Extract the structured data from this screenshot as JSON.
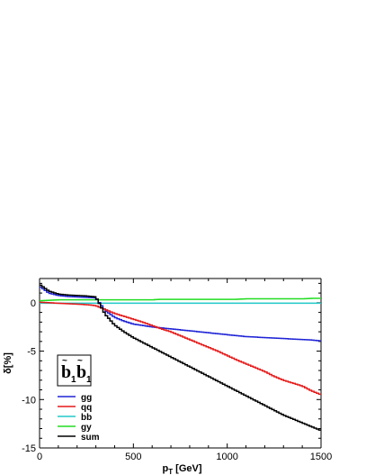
{
  "chart_data": {
    "type": "line",
    "xlabel": "p",
    "xlabel_sub": "T",
    "xlabel_unit": " [GeV]",
    "ylabel": "δ[%]",
    "xlim": [
      0,
      1500
    ],
    "ylim": [
      -15,
      2.5
    ],
    "xticks": [
      0,
      500,
      1000,
      1500
    ],
    "yticks": [
      0,
      -5,
      -10,
      -15
    ],
    "grid": false,
    "legend_position": "bottom-left",
    "annotation": {
      "text": "b",
      "sub": "1",
      "tilde": "~"
    },
    "x": [
      0,
      50,
      100,
      150,
      200,
      250,
      300,
      350,
      400,
      450,
      500,
      550,
      600,
      650,
      700,
      750,
      800,
      850,
      900,
      950,
      1000,
      1050,
      1100,
      1150,
      1200,
      1250,
      1300,
      1350,
      1400,
      1450,
      1500
    ],
    "series": [
      {
        "name": "gg",
        "color": "#1f24d6",
        "values": [
          1.7,
          1.0,
          0.75,
          0.65,
          0.6,
          0.55,
          0.5,
          -0.8,
          -1.5,
          -1.9,
          -2.2,
          -2.35,
          -2.5,
          -2.6,
          -2.7,
          -2.8,
          -2.9,
          -3.0,
          -3.1,
          -3.2,
          -3.3,
          -3.4,
          -3.5,
          -3.55,
          -3.6,
          -3.65,
          -3.7,
          -3.75,
          -3.8,
          -3.85,
          -3.95
        ]
      },
      {
        "name": "qq",
        "color": "#e61919",
        "values": [
          0.05,
          0.0,
          -0.05,
          -0.1,
          -0.15,
          -0.2,
          -0.3,
          -0.7,
          -1.1,
          -1.4,
          -1.7,
          -2.0,
          -2.35,
          -2.7,
          -3.0,
          -3.4,
          -3.8,
          -4.2,
          -4.6,
          -5.0,
          -5.45,
          -5.9,
          -6.3,
          -6.7,
          -7.1,
          -7.6,
          -8.0,
          -8.3,
          -8.6,
          -9.1,
          -9.5
        ]
      },
      {
        "name": "bb",
        "color": "#20c8c8",
        "values": [
          -0.05,
          -0.05,
          -0.05,
          -0.05,
          -0.05,
          -0.05,
          -0.05,
          -0.05,
          -0.05,
          -0.05,
          -0.05,
          -0.05,
          -0.05,
          -0.05,
          -0.05,
          -0.05,
          -0.05,
          -0.05,
          -0.05,
          -0.05,
          -0.05,
          -0.05,
          -0.05,
          -0.05,
          -0.05,
          -0.05,
          -0.05,
          -0.05,
          -0.05,
          -0.05,
          -0.05
        ]
      },
      {
        "name": "gy",
        "color": "#22dd22",
        "values": [
          0.2,
          0.25,
          0.3,
          0.3,
          0.3,
          0.3,
          0.3,
          0.3,
          0.3,
          0.3,
          0.3,
          0.3,
          0.3,
          0.35,
          0.35,
          0.35,
          0.35,
          0.35,
          0.35,
          0.35,
          0.35,
          0.35,
          0.4,
          0.4,
          0.4,
          0.4,
          0.4,
          0.4,
          0.4,
          0.45,
          0.45
        ]
      },
      {
        "name": "sum",
        "color": "#000000",
        "values": [
          1.9,
          1.2,
          0.9,
          0.8,
          0.75,
          0.7,
          0.6,
          -1.2,
          -2.3,
          -3.0,
          -3.6,
          -4.1,
          -4.6,
          -5.1,
          -5.6,
          -6.1,
          -6.6,
          -7.1,
          -7.6,
          -8.1,
          -8.6,
          -9.1,
          -9.6,
          -10.1,
          -10.6,
          -11.1,
          -11.6,
          -12.0,
          -12.4,
          -12.8,
          -13.2
        ]
      }
    ]
  }
}
